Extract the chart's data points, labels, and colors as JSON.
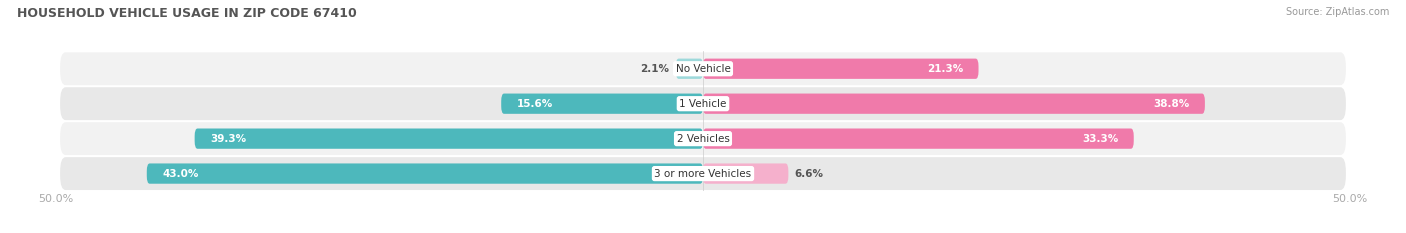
{
  "title": "HOUSEHOLD VEHICLE USAGE IN ZIP CODE 67410",
  "source": "Source: ZipAtlas.com",
  "categories": [
    "No Vehicle",
    "1 Vehicle",
    "2 Vehicles",
    "3 or more Vehicles"
  ],
  "owner_values": [
    2.1,
    15.6,
    39.3,
    43.0
  ],
  "renter_values": [
    21.3,
    38.8,
    33.3,
    6.6
  ],
  "owner_color": "#4db8bc",
  "renter_color": "#f07aaa",
  "owner_color_light": "#9dd9db",
  "renter_color_light": "#f5b0cc",
  "xlim_left": -50,
  "xlim_right": 50,
  "title_fontsize": 9,
  "value_fontsize": 7.5,
  "cat_fontsize": 7.5,
  "axis_fontsize": 8,
  "bar_height": 0.58,
  "background_color": "#ffffff",
  "row_bg_color_odd": "#f2f2f2",
  "row_bg_color_even": "#e8e8e8",
  "row_bg_alpha": 1.0
}
